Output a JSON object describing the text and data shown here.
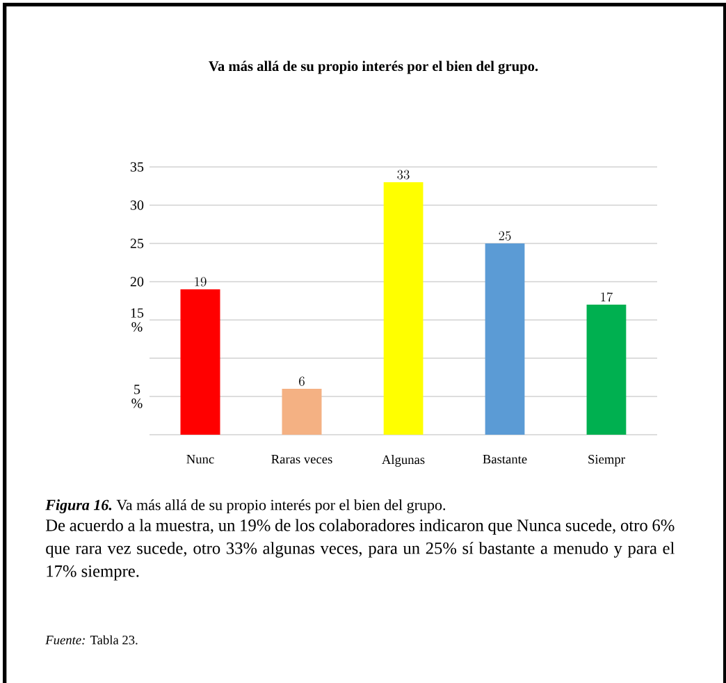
{
  "chart_data": {
    "type": "bar",
    "title": "Va más allá de su propio interés por el bien del grupo.",
    "categories": [
      "Nunc",
      "Raras veces",
      "Algunas",
      "Bastante",
      "Siempr"
    ],
    "values": [
      19,
      6,
      33,
      25,
      17
    ],
    "colors": [
      "#ff0000",
      "#f4b183",
      "#ffff00",
      "#5b9bd5",
      "#00b050"
    ],
    "ylim": [
      0,
      35
    ],
    "yticks": [
      {
        "value": 0,
        "label": null
      },
      {
        "value": 5,
        "label": "5 %"
      },
      {
        "value": 10,
        "label": null
      },
      {
        "value": 15,
        "label": "15 %"
      },
      20,
      25,
      30,
      35
    ],
    "grid": "y",
    "data_labels": true,
    "annotations": [
      "Figura 16.",
      "Va más allá de su propio interés por el bien del grupo.",
      "De acuerdo a la muestra, un 19% de los colaboradores indicaron que Nunca sucede, otro 6% que rara vez sucede, otro 33% algunas veces, para un 25% sí bastante a menudo y para el 17% siempre.",
      "*Fuente:* Tabla 23."
    ]
  }
}
